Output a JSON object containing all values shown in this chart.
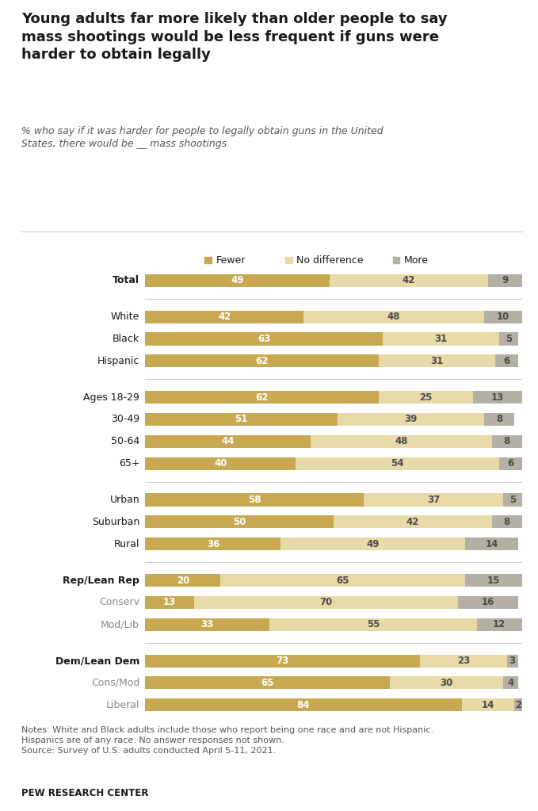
{
  "title": "Young adults far more likely than older people to say\nmass shootings would be less frequent if guns were\nharder to obtain legally",
  "subtitle": "% who say if it was harder for people to legally obtain guns in the United\nStates, there would be __ mass shootings",
  "categories": [
    "Total",
    "White",
    "Black",
    "Hispanic",
    "Ages 18-29",
    "30-49",
    "50-64",
    "65+",
    "Urban",
    "Suburban",
    "Rural",
    "Rep/Lean Rep",
    "Conserv",
    "Mod/Lib",
    "Dem/Lean Dem",
    "Cons/Mod",
    "Liberal"
  ],
  "fewer": [
    49,
    42,
    63,
    62,
    62,
    51,
    44,
    40,
    58,
    50,
    36,
    20,
    13,
    33,
    73,
    65,
    84
  ],
  "no_diff": [
    42,
    48,
    31,
    31,
    25,
    39,
    48,
    54,
    37,
    42,
    49,
    65,
    70,
    55,
    23,
    30,
    14
  ],
  "more": [
    9,
    10,
    5,
    6,
    13,
    8,
    8,
    6,
    5,
    8,
    14,
    15,
    16,
    12,
    3,
    4,
    2
  ],
  "color_fewer": "#C8A951",
  "color_no_diff": "#E8D9A8",
  "color_more": "#B5B0A5",
  "group_boundaries": [
    [
      0
    ],
    [
      1,
      2,
      3
    ],
    [
      4,
      5,
      6,
      7
    ],
    [
      8,
      9,
      10
    ],
    [
      11,
      12,
      13
    ],
    [
      14,
      15,
      16
    ]
  ],
  "bold_labels": [
    "Total",
    "Rep/Lean Rep",
    "Dem/Lean Dem"
  ],
  "gray_labels": [
    "Conserv",
    "Mod/Lib",
    "Cons/Mod",
    "Liberal"
  ],
  "notes": "Notes: White and Black adults include those who report being one race and are not Hispanic.\nHispanics are of any race. No answer responses not shown.\nSource: Survey of U.S. adults conducted April 5-11, 2021.",
  "source": "PEW RESEARCH CENTER",
  "legend_labels": [
    "Fewer",
    "No difference",
    "More"
  ],
  "bg_color": "#FFFFFF"
}
